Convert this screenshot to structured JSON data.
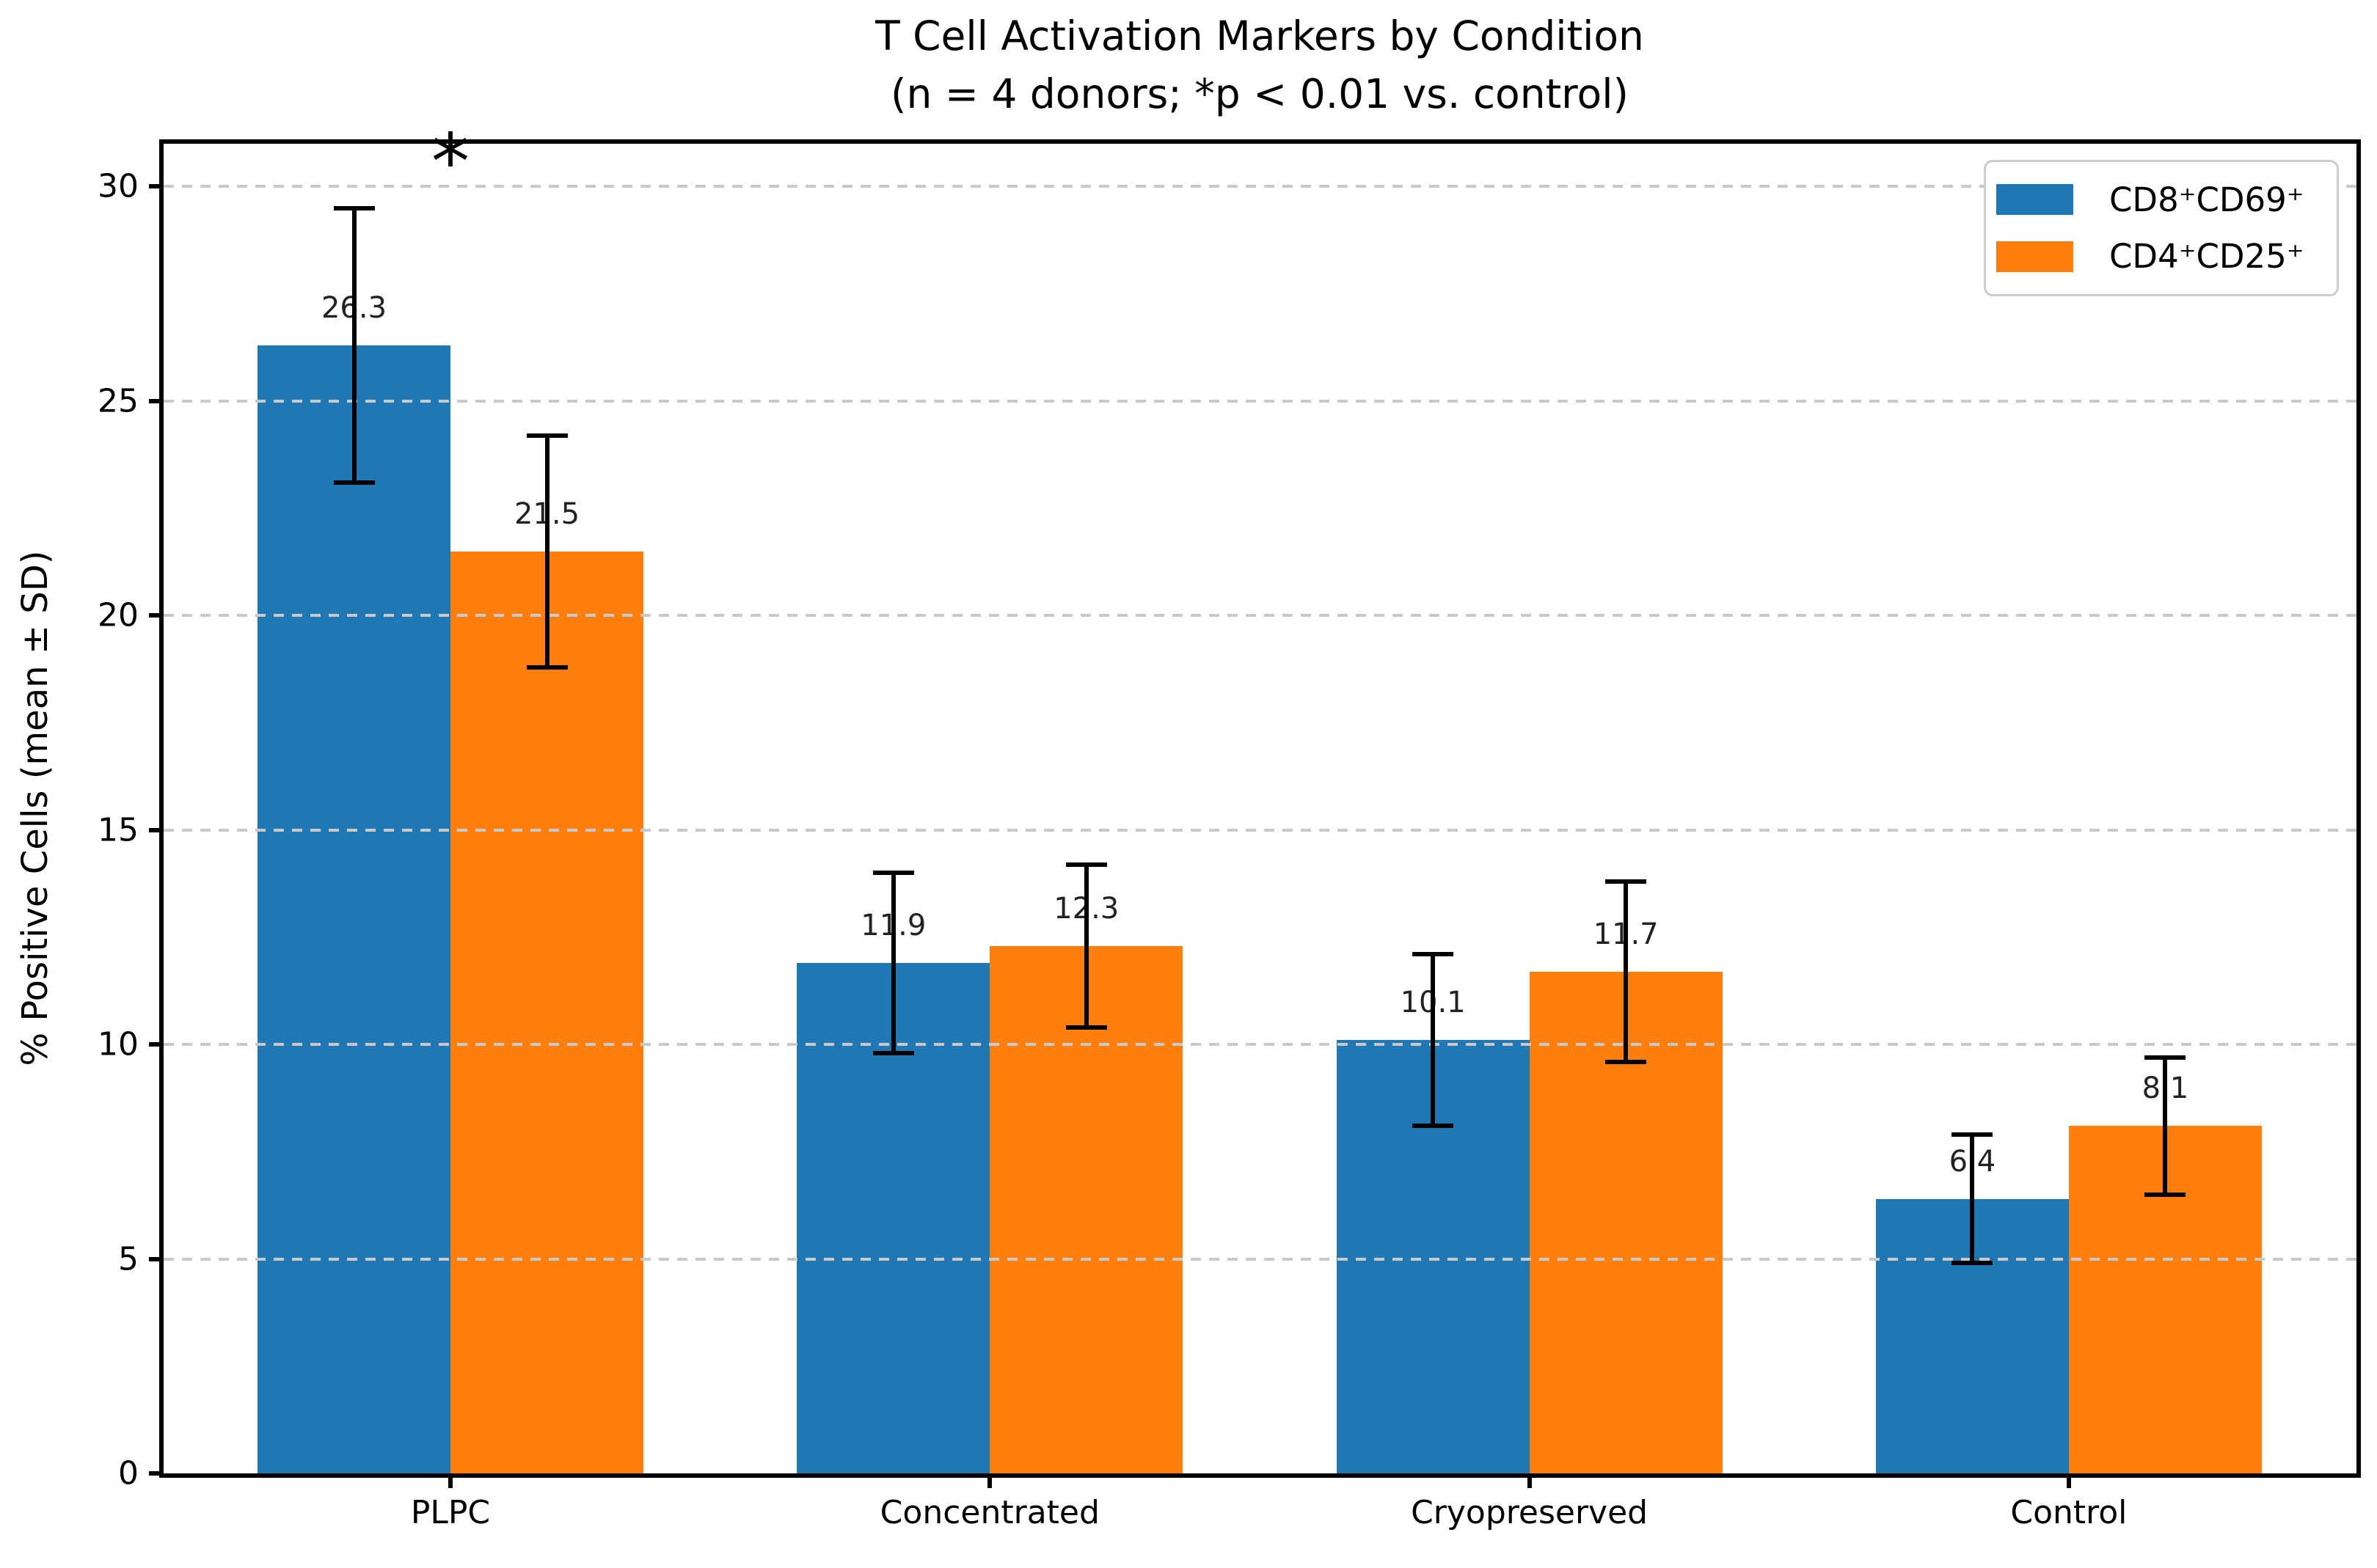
{
  "title": "T Cell Activation Markers by Condition",
  "subtitle": "(n = 4 donors; *p < 0.01 vs. control)",
  "chart_data": {
    "type": "bar",
    "categories": [
      "PLPC",
      "Concentrated",
      "Cryopreserved",
      "Control"
    ],
    "series": [
      {
        "name": "CD8⁺CD69⁺",
        "color": "#1f77b4",
        "values": [
          26.3,
          11.9,
          10.1,
          6.4
        ],
        "sd": [
          3.2,
          2.1,
          2.0,
          1.5
        ]
      },
      {
        "name": "CD4⁺CD25⁺",
        "color": "#ff7f0e",
        "values": [
          21.5,
          12.3,
          11.7,
          8.1
        ],
        "sd": [
          2.7,
          1.9,
          2.1,
          1.6
        ]
      }
    ],
    "xlabel": "",
    "ylabel": "% Positive Cells (mean ± SD)",
    "y_ticks": [
      0,
      5,
      10,
      15,
      20,
      25,
      30
    ],
    "ylim": [
      0,
      31
    ],
    "grid": "horizontal-dashed",
    "grid_color": "#c9c9c9",
    "axis_color": "#000000",
    "legend_position": "upper-right",
    "legend_border_color": "#cccccc",
    "bar_value_labels": [
      "26.3",
      "11.9",
      "10.1",
      "6.4",
      "21.5",
      "12.3",
      "11.7",
      "8.1"
    ],
    "annotations": [
      {
        "text": "*",
        "category": "PLPC",
        "y": 30.6
      }
    ]
  }
}
